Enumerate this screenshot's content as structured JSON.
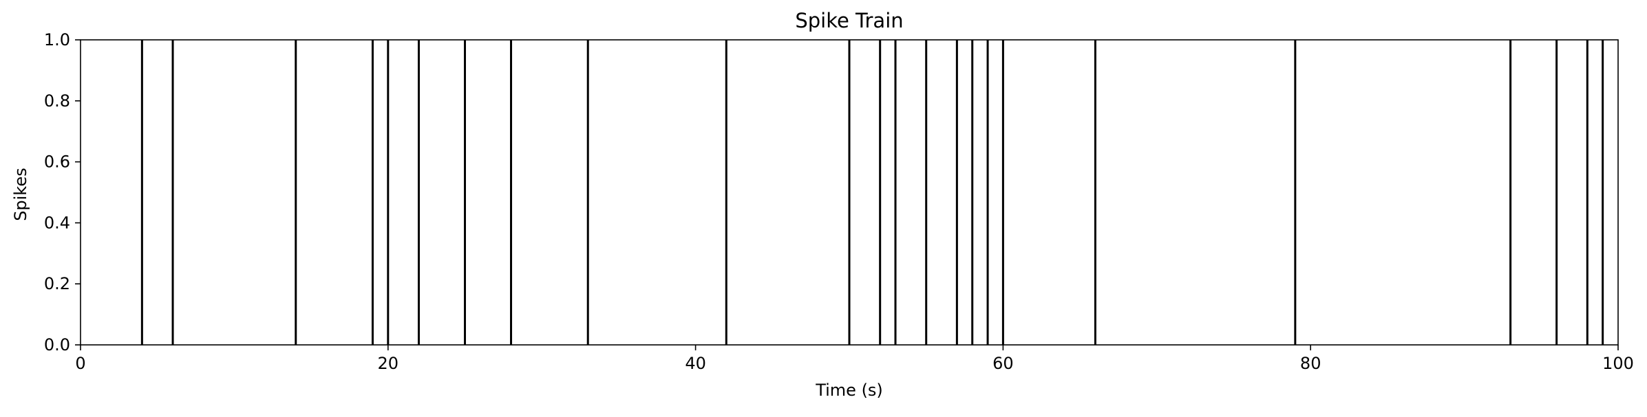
{
  "chart_data": {
    "type": "event-raster",
    "title": "Spike Train",
    "xlabel": "Time (s)",
    "ylabel": "Spikes",
    "xlim": [
      0,
      100
    ],
    "ylim": [
      0,
      1
    ],
    "x_ticks": [
      0,
      20,
      40,
      60,
      80,
      100
    ],
    "x_tick_labels": [
      "0",
      "20",
      "40",
      "60",
      "80",
      "100"
    ],
    "y_ticks": [
      0.0,
      0.2,
      0.4,
      0.6,
      0.8,
      1.0
    ],
    "y_tick_labels": [
      "0.0",
      "0.2",
      "0.4",
      "0.6",
      "0.8",
      "1.0"
    ],
    "grid": false,
    "series": [
      {
        "x": [
          4,
          6,
          14,
          19,
          20,
          22,
          25,
          28,
          33,
          42,
          50,
          52,
          53,
          55,
          57,
          58,
          59,
          60,
          66,
          79,
          93,
          96,
          98,
          99
        ],
        "color": "#000000"
      }
    ]
  }
}
